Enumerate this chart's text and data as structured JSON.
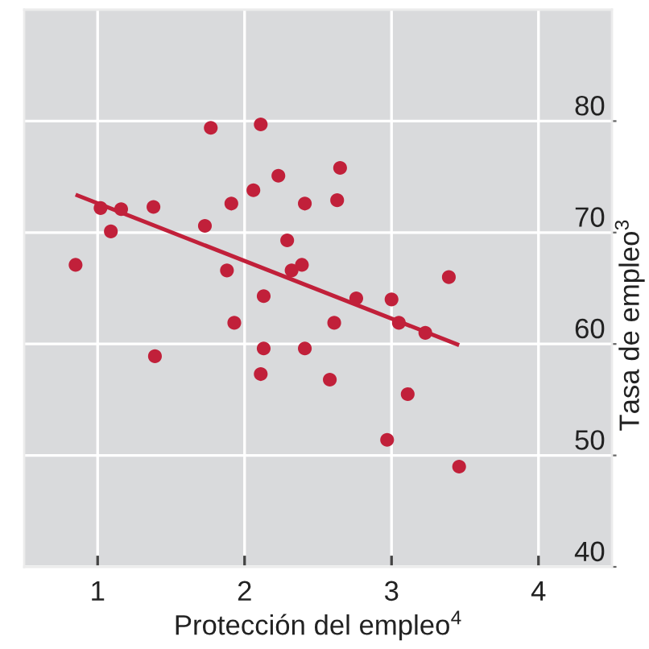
{
  "chart_data": {
    "type": "scatter",
    "xlabel": "Protección del empleo$^{4}$",
    "ylabel": "Tasa de empleo$^{3}$",
    "xlim": [
      0.5,
      4.5
    ],
    "xticks": [
      1,
      2,
      3,
      4
    ],
    "ylim": [
      40,
      90
    ],
    "yticks": [
      40,
      50,
      60,
      70,
      80
    ],
    "grid": true,
    "marker": "circle",
    "series": [
      {
        "color": "#c1203a",
        "x": [
          0.85,
          1.02,
          1.09,
          1.16,
          1.38,
          1.39,
          1.73,
          1.77,
          1.88,
          1.91,
          1.93,
          2.06,
          2.11,
          2.11,
          2.13,
          2.13,
          2.23,
          2.29,
          2.32,
          2.39,
          2.41,
          2.41,
          2.58,
          2.61,
          2.63,
          2.65,
          2.76,
          2.97,
          3.0,
          3.05,
          3.11,
          3.23,
          3.39,
          3.46
        ],
        "values": [
          67.1,
          72.2,
          70.1,
          72.1,
          72.3,
          58.9,
          70.6,
          79.4,
          66.6,
          72.6,
          61.9,
          73.8,
          79.7,
          57.3,
          64.3,
          59.6,
          75.1,
          69.3,
          66.6,
          67.1,
          72.6,
          59.6,
          56.8,
          61.9,
          72.9,
          75.8,
          64.1,
          51.4,
          64.0,
          61.9,
          55.5,
          61.0,
          66.0,
          49.0
        ]
      },
      {
        "type": "line",
        "marker": "none",
        "color": "#c1203a",
        "x": [
          0.85,
          3.46
        ],
        "values": [
          73.4,
          59.9
        ]
      }
    ]
  }
}
